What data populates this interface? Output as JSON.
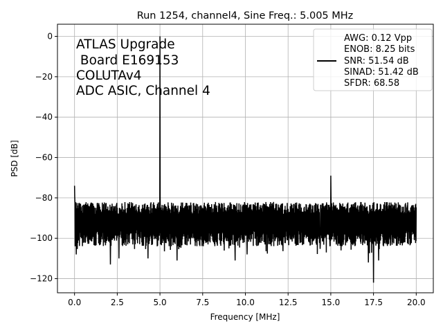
{
  "chart_data": {
    "type": "line",
    "title": "Run 1254, channel4, Sine Freq.: 5.005 MHz",
    "xlabel": "Frequency [MHz]",
    "ylabel": "PSD [dB]",
    "xlim": [
      -1.0,
      21.0
    ],
    "ylim": [
      -127,
      6
    ],
    "xticks": [
      0.0,
      2.5,
      5.0,
      7.5,
      10.0,
      12.5,
      15.0,
      17.5,
      20.0
    ],
    "xtick_labels": [
      "0.0",
      "2.5",
      "5.0",
      "7.5",
      "10.0",
      "12.5",
      "15.0",
      "17.5",
      "20.0"
    ],
    "yticks": [
      0,
      -20,
      -40,
      -60,
      -80,
      -100,
      -120
    ],
    "ytick_labels": [
      "0",
      "−20",
      "−40",
      "−60",
      "−80",
      "−100",
      "−120"
    ],
    "grid": true,
    "series": [
      {
        "name": "PSD",
        "color": "#000000",
        "x_range": [
          0.0,
          20.0
        ],
        "noise_floor_top": -82,
        "noise_floor_mean": -91,
        "noise_floor_bottom": -100,
        "peaks": [
          {
            "x": 0.0,
            "y": -74
          },
          {
            "x": 5.005,
            "y": 0
          },
          {
            "x": 15.0,
            "y": -69
          }
        ],
        "dips": [
          {
            "x": 0.1,
            "y": -108
          },
          {
            "x": 2.1,
            "y": -113
          },
          {
            "x": 2.6,
            "y": -110
          },
          {
            "x": 4.3,
            "y": -110
          },
          {
            "x": 6.0,
            "y": -111
          },
          {
            "x": 9.4,
            "y": -111
          },
          {
            "x": 10.1,
            "y": -108
          },
          {
            "x": 15.6,
            "y": -106
          },
          {
            "x": 17.2,
            "y": -112
          },
          {
            "x": 17.5,
            "y": -122
          },
          {
            "x": 17.8,
            "y": -111
          }
        ]
      }
    ],
    "legend": {
      "placement": "top-right",
      "entries": [
        "AWG: 0.12 Vpp",
        "ENOB: 8.25 bits",
        "SNR: 51.54 dB",
        "SINAD: 51.42 dB",
        "SFDR: 68.58"
      ]
    },
    "annotation": [
      "ATLAS Upgrade",
      " Board E169153",
      "COLUTAv4",
      "ADC ASIC, Channel 4"
    ]
  }
}
